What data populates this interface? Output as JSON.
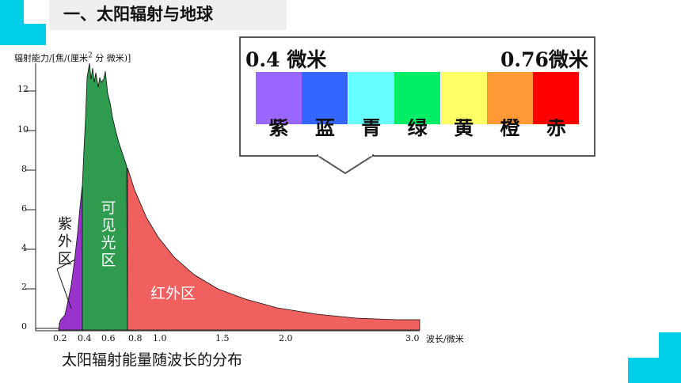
{
  "header": {
    "title": "一、太阳辐射与地球",
    "accent_color": "#00cfe8"
  },
  "chart_data": {
    "type": "area",
    "ylabel": "辐射能力/[焦/(厘米2 分 微米)]",
    "xlabel": "波长/微米",
    "caption": "太阳辐射能量随波长的分布",
    "y_ticks": [
      "0",
      "2",
      "4",
      "6",
      "8",
      "10",
      "12"
    ],
    "x_ticks": [
      "0.2",
      "0.4",
      "0.6",
      "0.8",
      "1.0",
      "1.5",
      "2.0",
      "3.0"
    ],
    "regions": [
      {
        "label": "紫外区",
        "range": [
          0.2,
          0.4
        ],
        "color": "#9933cc"
      },
      {
        "label": "可见光区",
        "range": [
          0.4,
          0.76
        ],
        "color": "#2e9b4e"
      },
      {
        "label": "红外区",
        "range": [
          0.76,
          3.0
        ],
        "color": "#f0605e"
      }
    ]
  },
  "spectrum": {
    "start": "0.4 微米",
    "end": "0.76微米",
    "bands": [
      {
        "label": "紫",
        "color": "#9966ff"
      },
      {
        "label": "蓝",
        "color": "#3366ff"
      },
      {
        "label": "青",
        "color": "#66ffff"
      },
      {
        "label": "绿",
        "color": "#00ee66"
      },
      {
        "label": "黄",
        "color": "#ffff66"
      },
      {
        "label": "橙",
        "color": "#ff9933"
      },
      {
        "label": "赤",
        "color": "#ff0000"
      }
    ]
  }
}
